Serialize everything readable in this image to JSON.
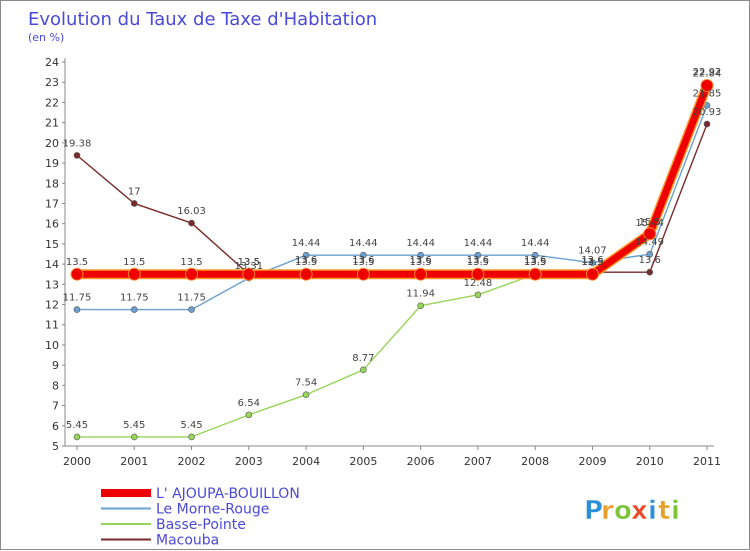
{
  "chart_data": {
    "type": "line",
    "title": "Evolution du Taux de Taxe d'Habitation",
    "subtitle": "(en %)",
    "x": [
      "2000",
      "2001",
      "2002",
      "2003",
      "2004",
      "2005",
      "2006",
      "2007",
      "2008",
      "2009",
      "2010",
      "2011"
    ],
    "ylim": [
      5,
      24
    ],
    "yticks": [
      5,
      6,
      7,
      8,
      9,
      10,
      11,
      12,
      13,
      14,
      15,
      16,
      17,
      18,
      19,
      20,
      21,
      22,
      23,
      24
    ],
    "grid": false,
    "legend_position": "bottom-left",
    "series": [
      {
        "name": "Macouba",
        "color": "#7a2a2a",
        "values": [
          19.38,
          17,
          16.03,
          13.5,
          13.6,
          13.6,
          13.6,
          13.6,
          13.6,
          13.6,
          13.6,
          20.93
        ],
        "labels": [
          "19.38",
          "17",
          "16.03",
          "13.5",
          "13.6",
          "13.6",
          "13.6",
          "13.6",
          "13.6",
          "13.6",
          "13.6",
          "20.93"
        ]
      },
      {
        "name": "Basse-Pointe",
        "color": "#99d45a",
        "values": [
          5.45,
          5.45,
          5.45,
          6.54,
          7.54,
          8.77,
          11.94,
          12.48,
          13.5,
          13.5,
          15.44,
          22.92
        ],
        "labels": [
          "5.45",
          "5.45",
          "5.45",
          "6.54",
          "7.54",
          "8.77",
          "11.94",
          "12.48",
          "13.5",
          "13.5",
          "15.44",
          "22.92"
        ]
      },
      {
        "name": "Le Morne-Rouge",
        "color": "#6aa0d0",
        "values": [
          11.75,
          11.75,
          11.75,
          13.31,
          14.44,
          14.44,
          14.44,
          14.44,
          14.44,
          14.07,
          14.49,
          21.85
        ],
        "labels": [
          "11.75",
          "11.75",
          "11.75",
          "13.31",
          "14.44",
          "14.44",
          "14.44",
          "14.44",
          "14.44",
          "14.07",
          "14.49",
          "21.85"
        ]
      },
      {
        "name": "L' AJOUPA-BOUILLON",
        "color": "#ee0000",
        "values": [
          13.5,
          13.5,
          13.5,
          13.5,
          13.5,
          13.5,
          13.5,
          13.5,
          13.5,
          13.5,
          15.5,
          22.84
        ],
        "labels": [
          "13.5",
          "13.5",
          "13.5",
          "13.5",
          "13.5",
          "13.5",
          "13.5",
          "13.5",
          "13.5",
          "13.5",
          "15.5",
          "22.84"
        ]
      }
    ],
    "legend": [
      "L' AJOUPA-BOUILLON",
      "Le Morne-Rouge",
      "Basse-Pointe",
      "Macouba"
    ]
  },
  "brand": {
    "letters": [
      "P",
      "r",
      "o",
      "x",
      "i",
      "t",
      "i"
    ],
    "colors": [
      "#2a8fd8",
      "#e8a02a",
      "#7cc43a",
      "#e84a2a",
      "#2a8fd8",
      "#e8a02a",
      "#7cc43a"
    ]
  }
}
